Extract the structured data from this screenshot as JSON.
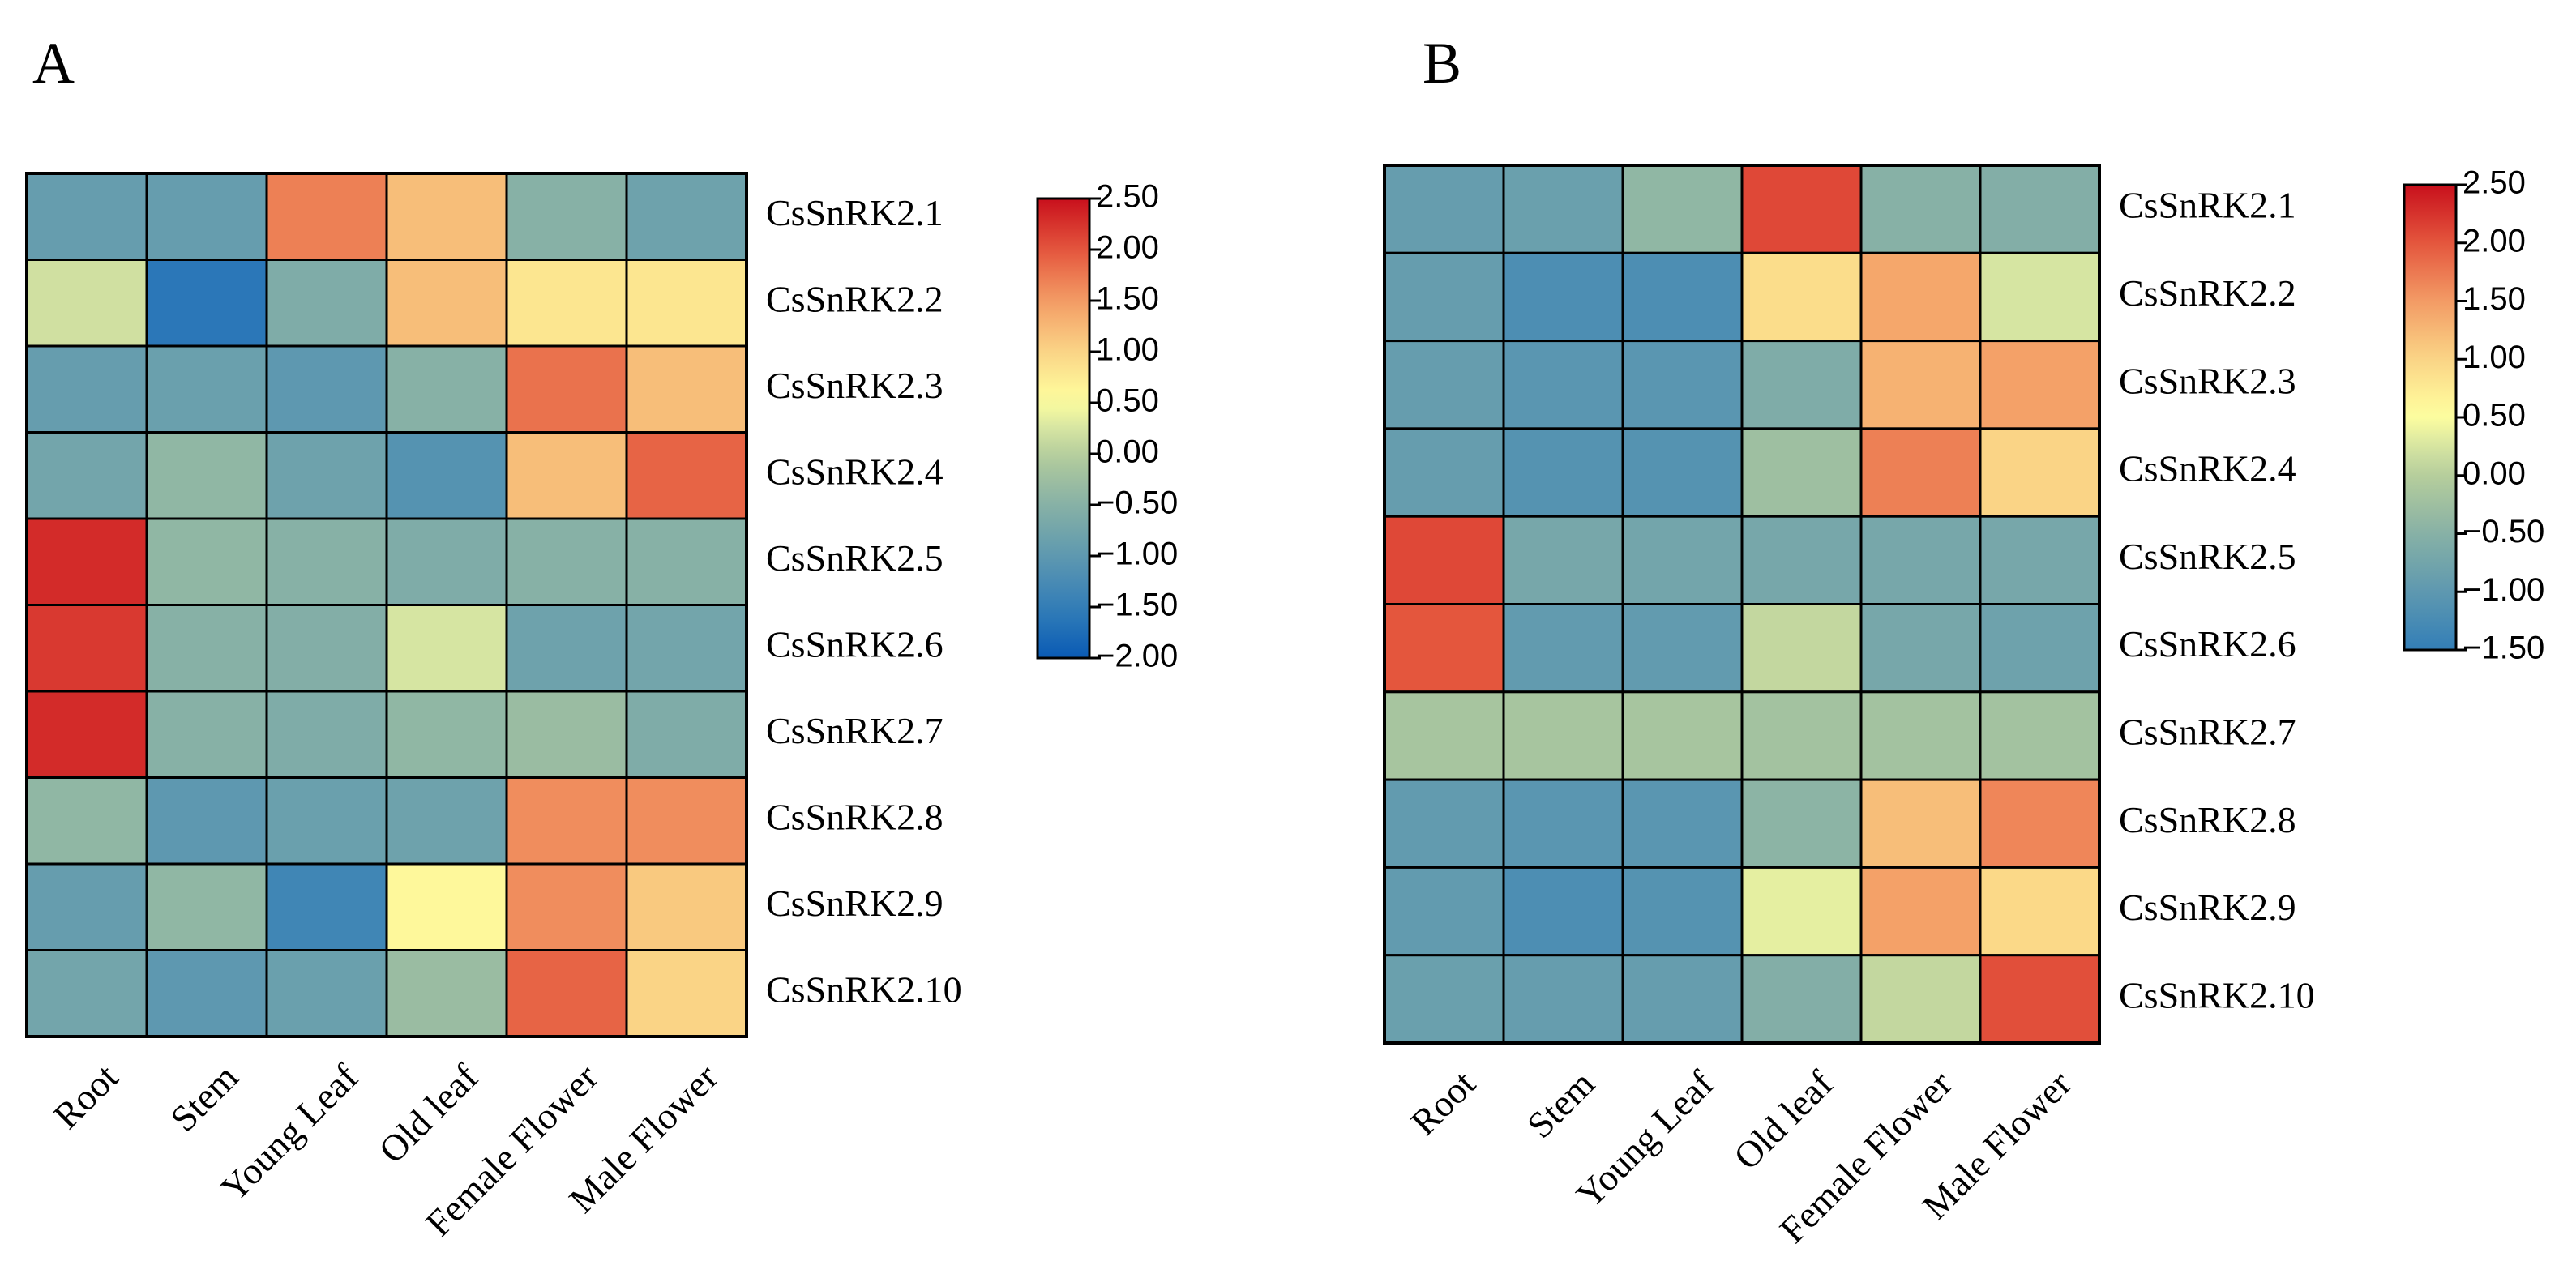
{
  "chart_data": [
    {
      "type": "heatmap",
      "panel_label": "A",
      "columns": [
        "Root",
        "Stem",
        "Young Leaf",
        "Old leaf",
        "Female Flower",
        "Male Flower"
      ],
      "rows": [
        "CsSnRK2.1",
        "CsSnRK2.2",
        "CsSnRK2.3",
        "CsSnRK2.4",
        "CsSnRK2.5",
        "CsSnRK2.6",
        "CsSnRK2.7",
        "CsSnRK2.8",
        "CsSnRK2.9",
        "CsSnRK2.10"
      ],
      "values": [
        [
          -0.9,
          -0.9,
          1.7,
          1.2,
          -0.5,
          -0.8
        ],
        [
          0.2,
          -1.6,
          -0.6,
          1.2,
          0.8,
          0.8
        ],
        [
          -0.9,
          -0.85,
          -1.0,
          -0.5,
          1.8,
          1.2
        ],
        [
          -0.75,
          -0.4,
          -0.8,
          -1.1,
          1.2,
          1.9
        ],
        [
          2.3,
          -0.4,
          -0.5,
          -0.6,
          -0.5,
          -0.5
        ],
        [
          2.2,
          -0.5,
          -0.55,
          0.25,
          -0.8,
          -0.75
        ],
        [
          2.3,
          -0.5,
          -0.6,
          -0.4,
          -0.3,
          -0.6
        ],
        [
          -0.4,
          -1.0,
          -0.85,
          -0.8,
          1.6,
          1.6
        ],
        [
          -0.9,
          -0.4,
          -1.35,
          0.6,
          1.6,
          1.1
        ],
        [
          -0.75,
          -1.0,
          -0.85,
          -0.3,
          1.9,
          1.0
        ]
      ],
      "colorbar": {
        "min": -2.0,
        "max": 2.5,
        "ticks": [
          "2.50",
          "2.00",
          "1.50",
          "1.00",
          "0.50",
          "0.00",
          "−0.50",
          "−1.00",
          "−1.50",
          "−2.00"
        ]
      }
    },
    {
      "type": "heatmap",
      "panel_label": "B",
      "columns": [
        "Root",
        "Stem",
        "Young Leaf",
        "Old leaf",
        "Female Flower",
        "Male Flower"
      ],
      "rows": [
        "CsSnRK2.1",
        "CsSnRK2.2",
        "CsSnRK2.3",
        "CsSnRK2.4",
        "CsSnRK2.5",
        "CsSnRK2.6",
        "CsSnRK2.7",
        "CsSnRK2.8",
        "CsSnRK2.9",
        "CsSnRK2.10"
      ],
      "values": [
        [
          -0.9,
          -0.85,
          -0.4,
          2.1,
          -0.5,
          -0.55
        ],
        [
          -0.9,
          -1.2,
          -1.2,
          0.9,
          1.4,
          0.25
        ],
        [
          -0.9,
          -1.05,
          -1.05,
          -0.6,
          1.3,
          1.45
        ],
        [
          -0.9,
          -1.1,
          -1.1,
          -0.25,
          1.7,
          1.0
        ],
        [
          2.1,
          -0.7,
          -0.75,
          -0.7,
          -0.7,
          -0.7
        ],
        [
          2.0,
          -0.95,
          -0.95,
          0.1,
          -0.7,
          -0.8
        ],
        [
          -0.15,
          -0.15,
          -0.15,
          -0.2,
          -0.2,
          -0.2
        ],
        [
          -0.95,
          -1.05,
          -1.05,
          -0.45,
          1.2,
          1.65
        ],
        [
          -0.95,
          -1.2,
          -1.1,
          0.35,
          1.45,
          0.95
        ],
        [
          -0.85,
          -0.9,
          -0.9,
          -0.55,
          0.1,
          2.05
        ]
      ],
      "colorbar": {
        "min": -1.5,
        "max": 2.5,
        "ticks": [
          "2.50",
          "2.00",
          "1.50",
          "1.00",
          "0.50",
          "0.00",
          "−0.50",
          "−1.00",
          "−1.50"
        ]
      }
    }
  ]
}
